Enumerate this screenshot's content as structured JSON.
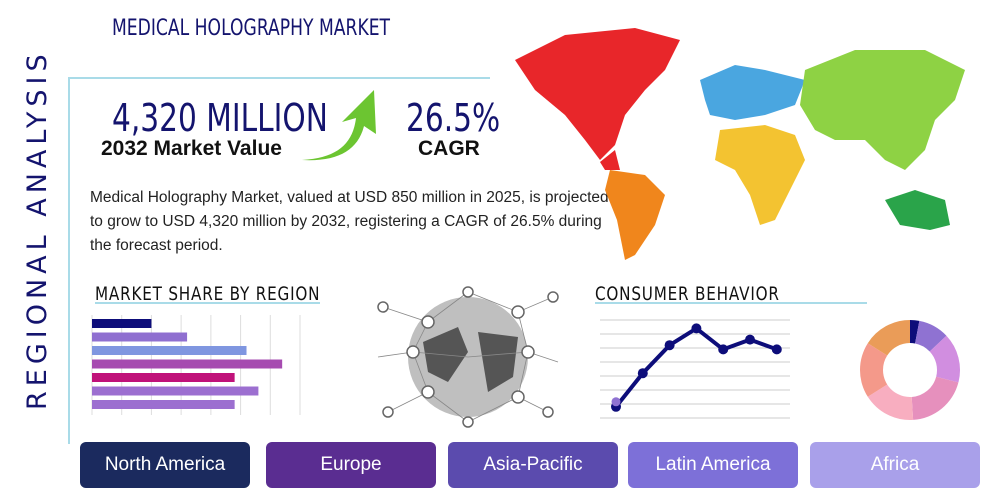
{
  "title": "MEDICAL HOLOGRAPHY MARKET",
  "side_title": "REGIONAL ANALYSIS",
  "market_value": {
    "value": "4,320 MILLION",
    "label": "2032 Market Value"
  },
  "cagr": {
    "value": "26.5%",
    "label": "CAGR"
  },
  "description": "Medical Holography Market, valued at USD 850 million in 2025, is projected to grow to USD 4,320 million by 2032, registering a CAGR of 26.5% during the forecast period.",
  "sections": {
    "market_share": "MARKET SHARE BY REGION",
    "consumer": "CONSUMER BEHAVIOR"
  },
  "regions": [
    {
      "label": "North America",
      "color": "#1b2a5e"
    },
    {
      "label": "Europe",
      "color": "#5a2d91"
    },
    {
      "label": "Asia-Pacific",
      "color": "#5b4bae"
    },
    {
      "label": "Latin America",
      "color": "#7d70d8"
    },
    {
      "label": "Africa",
      "color": "#a9a0ea"
    }
  ],
  "chart_data": [
    {
      "type": "bar",
      "orientation": "horizontal",
      "values": [
        2,
        3.2,
        5.2,
        6.4,
        4.8,
        5.6,
        4.8
      ],
      "colors": [
        "#0d0d7a",
        "#8f6fd0",
        "#7f96e0",
        "#a64bb0",
        "#c0127a",
        "#9c6fd0",
        "#9c6fd0"
      ],
      "xlim": [
        0,
        7
      ],
      "grid": true
    },
    {
      "type": "line",
      "values": [
        0.8,
        3.2,
        5.2,
        6.4,
        4.9,
        5.6,
        4.9
      ],
      "ylim": [
        0,
        7
      ],
      "color": "#0d0d7a",
      "grid": true
    },
    {
      "type": "pie",
      "donut": true,
      "values": [
        3,
        10,
        16,
        20,
        17,
        18,
        16
      ],
      "colors": [
        "#0d0d7a",
        "#8f72d2",
        "#d18ee0",
        "#e690bd",
        "#f8aec0",
        "#f4998a",
        "#ea9c58"
      ]
    }
  ]
}
